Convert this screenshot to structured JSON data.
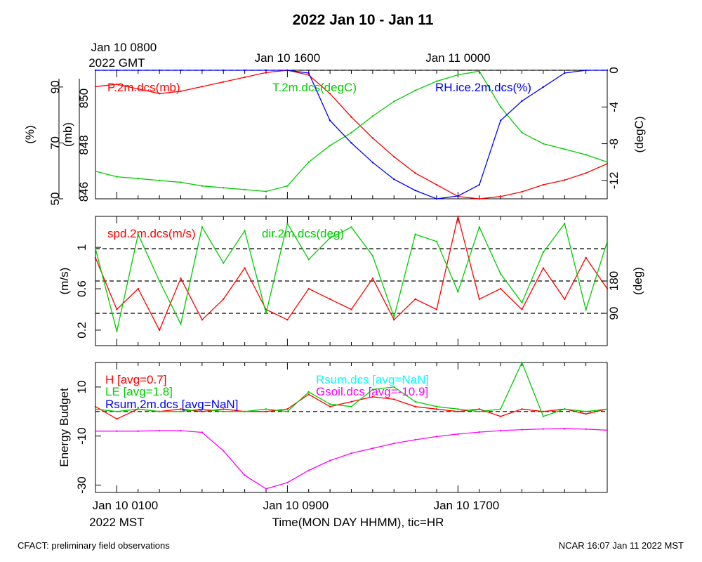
{
  "title": "2022 Jan 10 - Jan 11",
  "time_axis": {
    "top_ticks": [
      {
        "hour": 0,
        "line1": "Jan 10 0800",
        "line2": "2022 GMT"
      },
      {
        "hour": 8,
        "line1": "Jan 10 1600",
        "line2": ""
      },
      {
        "hour": 16,
        "line1": "Jan 11 0000",
        "line2": ""
      }
    ],
    "bottom_ticks": [
      {
        "hour": 0,
        "line1": "Jan 10 0100",
        "line2": "2022 MST"
      },
      {
        "hour": 8,
        "line1": "Jan 10 0900",
        "line2": ""
      },
      {
        "hour": 16,
        "line1": "Jan 10 1700",
        "line2": ""
      }
    ],
    "xlabel": "Time(MON DAY HHMM), tic=HR",
    "range_hours": [
      -1,
      23
    ]
  },
  "footer": {
    "left": "CFACT: preliminary field observations",
    "right": "NCAR 16:07 Jan 11 2022 MST"
  },
  "chart_data": [
    {
      "type": "line",
      "panel": "meteorology",
      "x_unit": "hours since Jan 10 0100 MST",
      "axes": {
        "left_outer": {
          "label": "(%)",
          "ticks": [
            50,
            70,
            90
          ],
          "range": [
            50,
            96
          ]
        },
        "left_inner": {
          "label": "(mb)",
          "ticks": [
            846,
            848,
            850
          ],
          "range": [
            845.7,
            851.2
          ]
        },
        "right": {
          "label": "(degC)",
          "ticks": [
            0,
            -4,
            -8,
            -12
          ],
          "range": [
            -14,
            0
          ]
        }
      },
      "reference_lines": [
        {
          "axis": "right",
          "value": 0
        }
      ],
      "series": [
        {
          "name": "P.2m.dcs(mb)",
          "color": "#ff0000",
          "axis": "left_inner",
          "x": [
            -1,
            0,
            1,
            2,
            3,
            4,
            5,
            6,
            7,
            8,
            9,
            10,
            11,
            12,
            13,
            14,
            15,
            16,
            17,
            18,
            19,
            20,
            21,
            22,
            23
          ],
          "y": [
            850.5,
            850.6,
            850.4,
            850.2,
            850.3,
            850.5,
            850.7,
            850.9,
            851.1,
            851.2,
            851.0,
            850.2,
            849.2,
            848.3,
            847.5,
            846.8,
            846.3,
            845.8,
            845.7,
            845.8,
            846.0,
            846.3,
            846.5,
            846.8,
            847.2
          ]
        },
        {
          "name": "T.2m.dcs(degC)",
          "color": "#00cc00",
          "axis": "right",
          "x": [
            -1,
            0,
            1,
            2,
            3,
            4,
            5,
            6,
            7,
            8,
            9,
            10,
            11,
            12,
            13,
            14,
            15,
            16,
            17,
            18,
            19,
            20,
            21,
            22,
            23
          ],
          "y": [
            -11.0,
            -11.6,
            -11.8,
            -12.0,
            -12.2,
            -12.6,
            -12.8,
            -13.0,
            -13.2,
            -12.6,
            -10.0,
            -8.2,
            -6.8,
            -5.0,
            -3.4,
            -2.2,
            -1.2,
            -0.5,
            -0.1,
            -4.0,
            -6.8,
            -8.0,
            -8.6,
            -9.2,
            -10.0
          ]
        },
        {
          "name": "RH.ice.2m.dcs(%)",
          "color": "#0000ff",
          "axis": "left_outer",
          "x": [
            -1,
            0,
            1,
            2,
            3,
            4,
            5,
            6,
            7,
            8,
            9,
            10,
            11,
            12,
            13,
            14,
            15,
            16,
            17,
            18,
            19,
            20,
            21,
            22,
            23
          ],
          "y": [
            96,
            96,
            96,
            96,
            96,
            96,
            96,
            96,
            96,
            96,
            95,
            78,
            70,
            63,
            57,
            53,
            50,
            51,
            55,
            78,
            85,
            90,
            95,
            96,
            96
          ]
        }
      ]
    },
    {
      "type": "line",
      "panel": "wind",
      "x_unit": "hours since Jan 10 0100 MST",
      "axes": {
        "left": {
          "label": "(m/s)",
          "ticks": [
            0.2,
            0.6,
            1.0
          ],
          "range": [
            0.05,
            1.3
          ]
        },
        "right": {
          "label": "(deg)",
          "ticks": [
            90,
            180
          ],
          "range": [
            0,
            360
          ]
        }
      },
      "reference_lines": [
        {
          "axis": "right",
          "value": 90
        },
        {
          "axis": "right",
          "value": 180
        },
        {
          "axis": "right",
          "value": 270
        }
      ],
      "series": [
        {
          "name": "spd.2m.dcs(m/s)",
          "color": "#ff0000",
          "axis": "left",
          "x": [
            -1,
            0,
            1,
            2,
            3,
            4,
            5,
            6,
            7,
            8,
            9,
            10,
            11,
            12,
            13,
            14,
            15,
            16,
            17,
            18,
            19,
            20,
            21,
            22,
            23
          ],
          "y": [
            0.9,
            0.4,
            0.6,
            0.2,
            0.7,
            0.3,
            0.5,
            0.8,
            0.4,
            0.3,
            0.6,
            0.5,
            0.4,
            0.7,
            0.3,
            0.5,
            0.4,
            1.3,
            0.5,
            0.6,
            0.4,
            0.8,
            0.5,
            0.9,
            0.6
          ]
        },
        {
          "name": "dir.2m.dcs(deg)",
          "color": "#00cc00",
          "axis": "right",
          "x": [
            -1,
            0,
            1,
            2,
            3,
            4,
            5,
            6,
            7,
            8,
            9,
            10,
            11,
            12,
            13,
            14,
            15,
            16,
            17,
            18,
            19,
            20,
            21,
            22,
            23
          ],
          "y": [
            270,
            40,
            310,
            180,
            60,
            330,
            230,
            320,
            90,
            340,
            240,
            300,
            330,
            250,
            80,
            310,
            290,
            150,
            330,
            200,
            120,
            260,
            340,
            100,
            290
          ]
        }
      ]
    },
    {
      "type": "line",
      "panel": "energy",
      "x_unit": "hours since Jan 10 0100 MST",
      "axes": {
        "left": {
          "label": "Energy Budget",
          "ticks": [
            -30,
            -10,
            10
          ],
          "range": [
            -33,
            20
          ]
        }
      },
      "reference_lines": [
        {
          "axis": "left",
          "value": 0
        }
      ],
      "series": [
        {
          "name": "H [avg=0.7]",
          "color": "#ff0000",
          "axis": "left",
          "x": [
            -1,
            0,
            1,
            2,
            3,
            4,
            5,
            6,
            7,
            8,
            9,
            10,
            11,
            12,
            13,
            14,
            15,
            16,
            17,
            18,
            19,
            20,
            21,
            22,
            23
          ],
          "y": [
            2,
            -3,
            1,
            0,
            1,
            0,
            1,
            0,
            0,
            1,
            7,
            2,
            4,
            6,
            5,
            2,
            1,
            0,
            1,
            -2,
            1,
            0,
            1,
            -1,
            1
          ]
        },
        {
          "name": "LE [avg=1.8]",
          "color": "#00cc00",
          "axis": "left",
          "x": [
            -1,
            0,
            1,
            2,
            3,
            4,
            5,
            6,
            7,
            8,
            9,
            10,
            11,
            12,
            13,
            14,
            15,
            16,
            17,
            18,
            19,
            20,
            21,
            22,
            23
          ],
          "y": [
            1,
            0,
            1,
            0,
            0,
            1,
            0,
            0,
            1,
            0,
            8,
            3,
            2,
            9,
            10,
            4,
            2,
            1,
            0,
            1,
            20,
            -2,
            1,
            0,
            1
          ]
        },
        {
          "name": "Rsum.2m.dcs [avg=NaN]",
          "color": "#0000ff",
          "axis": "left",
          "x": [],
          "y": []
        },
        {
          "name": "Rsum.dcs [avg=NaN]",
          "color": "#00ffff",
          "axis": "left",
          "x": [],
          "y": []
        },
        {
          "name": "Gsoil.dcs [avg=-10.9]",
          "color": "#ff00ff",
          "axis": "left",
          "x": [
            -1,
            0,
            1,
            2,
            3,
            4,
            5,
            6,
            7,
            8,
            9,
            10,
            11,
            12,
            13,
            14,
            15,
            16,
            17,
            18,
            19,
            20,
            21,
            22,
            23
          ],
          "y": [
            -8,
            -8,
            -8,
            -7.8,
            -7.8,
            -8.5,
            -16,
            -26,
            -31.5,
            -29,
            -24,
            -20,
            -17,
            -15,
            -13,
            -11.5,
            -10.2,
            -9.2,
            -8.4,
            -7.8,
            -7.4,
            -7.1,
            -7.0,
            -7.2,
            -7.6
          ]
        }
      ]
    }
  ]
}
